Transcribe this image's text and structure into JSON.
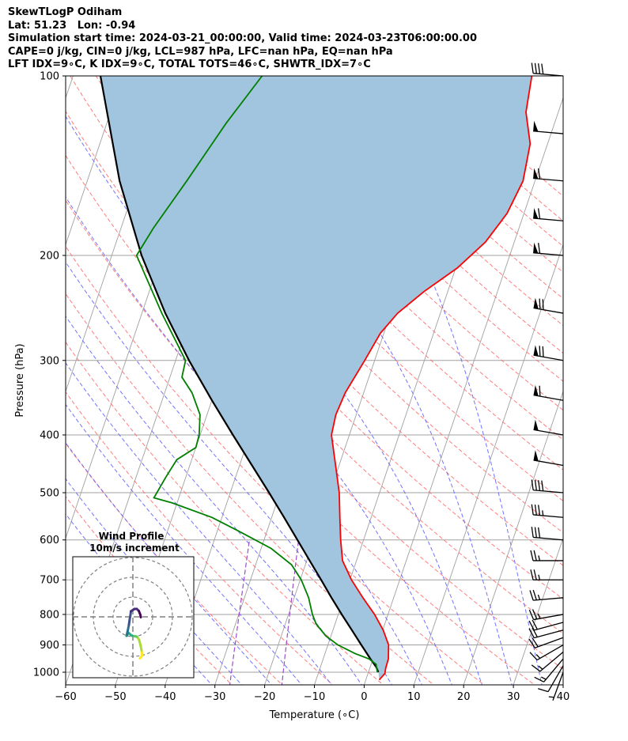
{
  "header": {
    "line1": "SkewTLogP Odiham",
    "line2": "Lat: 51.23   Lon: -0.94",
    "line3": "Simulation start time: 2024-03-21_00:00:00, Valid time: 2024-03-23T06:00:00.00",
    "line4": "CAPE=0 j/kg, CIN=0 j/kg, LCL=987 hPa, LFC=nan hPa, EQ=nan hPa",
    "line5": "LFT IDX=9∘C, K IDX=9∘C, TOTAL TOTS=46∘C, SHWTR_IDX=7∘C"
  },
  "chart_data": {
    "type": "line",
    "subtype": "skew-T log-P diagram",
    "xlabel": "Temperature (∘C)",
    "ylabel": "Pressure (hPa)",
    "xlim": [
      -60,
      40
    ],
    "ylim": [
      1050,
      100
    ],
    "y_scale": "log",
    "x_ticks": [
      "−60",
      "−50",
      "−40",
      "−30",
      "−20",
      "−10",
      "0",
      "10",
      "20",
      "30",
      "40"
    ],
    "x_tick_values": [
      -60,
      -50,
      -40,
      -30,
      -20,
      -10,
      0,
      10,
      20,
      30,
      40
    ],
    "y_ticks": [
      1000,
      900,
      800,
      700,
      600,
      500,
      400,
      300,
      200,
      100
    ],
    "grid": true,
    "colors": {
      "temperature": "#ff0000",
      "dewpoint": "#008000",
      "parcel": "#000000",
      "cape_fill": "#a1c5df",
      "dry_adiabat": "#ff6666",
      "moist_adiabat": "#5a5aff",
      "mixing_ratio": "#9b4dca",
      "isotherm": "#a0a0a0"
    },
    "series": [
      {
        "role": "temperature",
        "points": [
          [
            1030,
            2.7
          ],
          [
            1005,
            3.4
          ],
          [
            985,
            3.2
          ],
          [
            950,
            3.1
          ],
          [
            900,
            2.2
          ],
          [
            850,
            0.1
          ],
          [
            800,
            -2.7
          ],
          [
            750,
            -6.2
          ],
          [
            700,
            -9.7
          ],
          [
            650,
            -12.8
          ],
          [
            600,
            -14.6
          ],
          [
            550,
            -16.3
          ],
          [
            500,
            -18.1
          ],
          [
            450,
            -20.7
          ],
          [
            400,
            -23.6
          ],
          [
            370,
            -24.1
          ],
          [
            340,
            -23.7
          ],
          [
            300,
            -22.0
          ],
          [
            270,
            -20.7
          ],
          [
            250,
            -18.6
          ],
          [
            230,
            -14.8
          ],
          [
            210,
            -9.7
          ],
          [
            190,
            -5.8
          ],
          [
            170,
            -3.4
          ],
          [
            150,
            -2.4
          ],
          [
            130,
            -3.5
          ],
          [
            115,
            -6.5
          ],
          [
            100,
            -7.8
          ]
        ]
      },
      {
        "role": "dewpoint",
        "points": [
          [
            1000,
            1.8
          ],
          [
            970,
            1.0
          ],
          [
            950,
            -0.8
          ],
          [
            930,
            -4.0
          ],
          [
            900,
            -8.0
          ],
          [
            870,
            -11.0
          ],
          [
            830,
            -13.8
          ],
          [
            800,
            -15.2
          ],
          [
            750,
            -17.1
          ],
          [
            700,
            -19.8
          ],
          [
            660,
            -22.8
          ],
          [
            620,
            -28.0
          ],
          [
            580,
            -35.7
          ],
          [
            550,
            -42.0
          ],
          [
            520,
            -51.0
          ],
          [
            510,
            -55.0
          ],
          [
            470,
            -54.0
          ],
          [
            440,
            -53.0
          ],
          [
            420,
            -50.0
          ],
          [
            400,
            -50.2
          ],
          [
            370,
            -51.4
          ],
          [
            340,
            -54.5
          ],
          [
            320,
            -57.6
          ],
          [
            300,
            -58.0
          ],
          [
            250,
            -66.0
          ],
          [
            200,
            -75.0
          ],
          [
            180,
            -73.5
          ],
          [
            150,
            -70.0
          ],
          [
            120,
            -66.0
          ],
          [
            100,
            -62.0
          ]
        ]
      },
      {
        "role": "parcel",
        "points": [
          [
            1000,
            2.0
          ],
          [
            980,
            1.2
          ],
          [
            950,
            -0.5
          ],
          [
            900,
            -3.3
          ],
          [
            850,
            -6.2
          ],
          [
            800,
            -9.3
          ],
          [
            750,
            -12.5
          ],
          [
            700,
            -15.8
          ],
          [
            650,
            -19.4
          ],
          [
            600,
            -23.3
          ],
          [
            550,
            -27.5
          ],
          [
            500,
            -32.2
          ],
          [
            450,
            -37.5
          ],
          [
            400,
            -43.4
          ],
          [
            350,
            -50.0
          ],
          [
            300,
            -57.3
          ],
          [
            250,
            -65.3
          ],
          [
            200,
            -74.0
          ],
          [
            150,
            -83.5
          ],
          [
            100,
            -94.5
          ]
        ]
      }
    ],
    "wind_barbs": {
      "pressures": [
        1000,
        975,
        950,
        925,
        900,
        875,
        850,
        825,
        800,
        750,
        700,
        650,
        600,
        550,
        500,
        450,
        400,
        350,
        300,
        250,
        200,
        175,
        150,
        125,
        100
      ],
      "speed_kt": [
        5,
        10,
        15,
        15,
        15,
        20,
        20,
        20,
        25,
        25,
        25,
        25,
        30,
        35,
        40,
        50,
        50,
        60,
        70,
        70,
        60,
        60,
        60,
        50,
        40
      ],
      "direction_deg": [
        200,
        210,
        220,
        230,
        240,
        250,
        255,
        255,
        260,
        265,
        270,
        270,
        275,
        275,
        275,
        280,
        280,
        280,
        280,
        280,
        275,
        275,
        275,
        275,
        275
      ]
    },
    "hodograph": {
      "title": "Wind Profile",
      "subtitle": "10m/s increment",
      "colormap": "viridis",
      "u": [
        3.5,
        4.1,
        4.7,
        4.4,
        3.9,
        3.1,
        2.0,
        0.8,
        -0.3,
        -1.2,
        -2.0,
        -2.6,
        -3.1,
        -3.2,
        -3.0,
        -2.6,
        -2.0,
        -1.6,
        -1.2,
        -1.0,
        0.8,
        2.0,
        3.0,
        3.8,
        4.0
      ],
      "v": [
        -21.0,
        -20.5,
        -19.5,
        -17.0,
        -14.5,
        -11.5,
        -10.0,
        -9.8,
        -9.6,
        -9.0,
        -8.2,
        -8.6,
        -9.5,
        -9.6,
        -8.8,
        -7.0,
        -4.0,
        -1.2,
        1.0,
        2.8,
        4.0,
        4.0,
        3.0,
        1.0,
        -0.2
      ]
    }
  }
}
